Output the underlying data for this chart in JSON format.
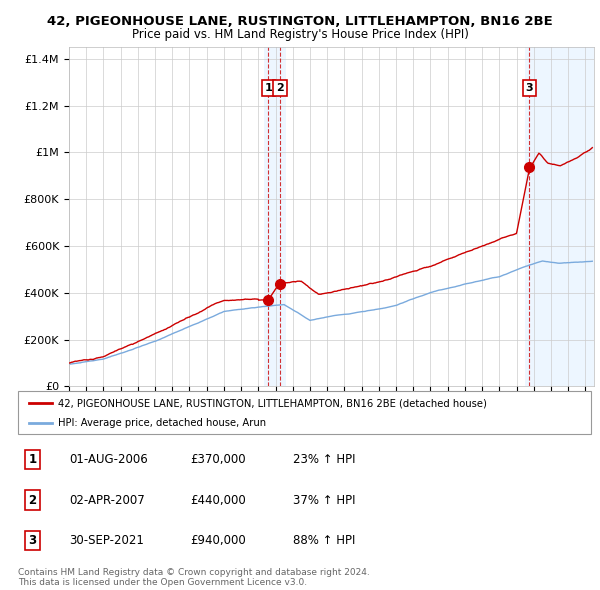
{
  "title": "42, PIGEONHOUSE LANE, RUSTINGTON, LITTLEHAMPTON, BN16 2BE",
  "subtitle": "Price paid vs. HM Land Registry's House Price Index (HPI)",
  "ylabel_ticks": [
    "£0",
    "£200K",
    "£400K",
    "£600K",
    "£800K",
    "£1M",
    "£1.2M",
    "£1.4M"
  ],
  "ytick_values": [
    0,
    200000,
    400000,
    600000,
    800000,
    1000000,
    1200000,
    1400000
  ],
  "ylim": [
    0,
    1450000
  ],
  "xlim_start": 1995.0,
  "xlim_end": 2025.5,
  "legend_line1": "42, PIGEONHOUSE LANE, RUSTINGTON, LITTLEHAMPTON, BN16 2BE (detached house)",
  "legend_line2": "HPI: Average price, detached house, Arun",
  "sale1_date": 2006.58,
  "sale1_price": 370000,
  "sale1_label": "1",
  "sale2_date": 2007.25,
  "sale2_price": 440000,
  "sale2_label": "2",
  "sale3_date": 2021.75,
  "sale3_price": 940000,
  "sale3_label": "3",
  "table_data": [
    [
      "1",
      "01-AUG-2006",
      "£370,000",
      "23% ↑ HPI"
    ],
    [
      "2",
      "02-APR-2007",
      "£440,000",
      "37% ↑ HPI"
    ],
    [
      "3",
      "30-SEP-2021",
      "£940,000",
      "88% ↑ HPI"
    ]
  ],
  "footnote": "Contains HM Land Registry data © Crown copyright and database right 2024.\nThis data is licensed under the Open Government Licence v3.0.",
  "line_color_red": "#cc0000",
  "line_color_blue": "#7aaadd",
  "background_color": "#ffffff",
  "grid_color": "#cccccc",
  "shade_color": "#ddeeff"
}
